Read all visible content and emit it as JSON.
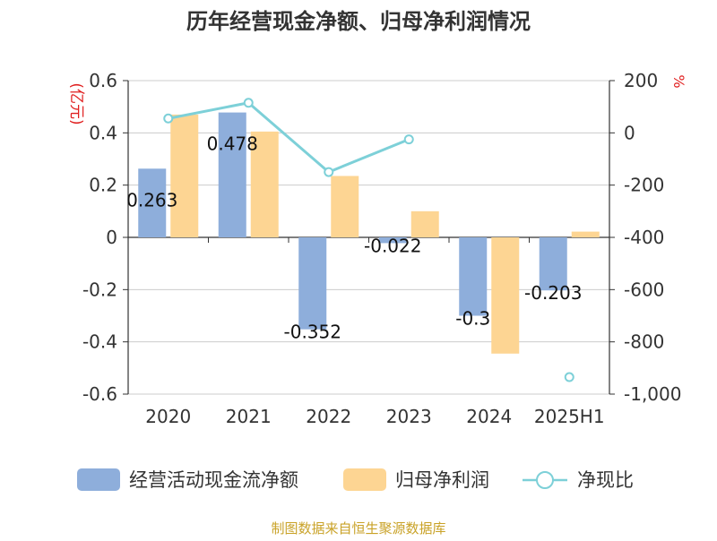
{
  "chart_data": {
    "type": "bar",
    "title": "历年经营现金净额、归母净利润情况",
    "left_unit": "(亿元)",
    "right_unit": "%",
    "categories": [
      "2020",
      "2021",
      "2022",
      "2023",
      "2024",
      "2025H1"
    ],
    "series": [
      {
        "name": "经营活动现金流净额",
        "type": "bar",
        "axis": "left",
        "color": "#8eaedb",
        "values": [
          0.263,
          0.478,
          -0.352,
          -0.022,
          -0.3,
          -0.203
        ],
        "labels": [
          "0.263",
          "0.478",
          "-0.352",
          "-0.022",
          "-0.3",
          "-0.203"
        ]
      },
      {
        "name": "归母净利润",
        "type": "bar",
        "axis": "left",
        "color": "#fdd593",
        "values": [
          0.47,
          0.405,
          0.235,
          0.1,
          -0.445,
          0.022
        ]
      },
      {
        "name": "净现比",
        "type": "line",
        "axis": "right",
        "color": "#7dd0d8",
        "values": [
          55,
          115,
          -150,
          -25,
          null,
          -935
        ]
      }
    ],
    "left_axis": {
      "min": -0.6,
      "max": 0.6,
      "ticks": [
        "0.6",
        "0.4",
        "0.2",
        "0",
        "-0.2",
        "-0.4",
        "-0.6"
      ]
    },
    "right_axis": {
      "min": -1000,
      "max": 200,
      "ticks": [
        "200",
        "0",
        "-200",
        "-400",
        "-600",
        "-800",
        "-1,000"
      ]
    },
    "grid": true,
    "legend_position": "bottom"
  },
  "source": "制图数据来自恒生聚源数据库",
  "colors": {
    "title": "#333333",
    "axis_text": "#333333",
    "unit_text": "#e02020",
    "grid": "#cccccc",
    "axis": "#333333",
    "source_text": "#c9a227"
  }
}
